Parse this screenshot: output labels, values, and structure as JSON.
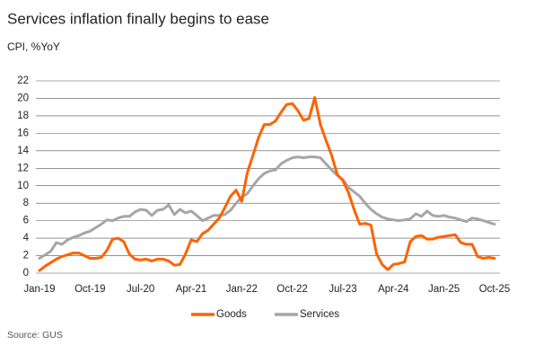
{
  "chart_data": {
    "type": "line",
    "title": "Services inflation finally begins to ease",
    "subtitle": "CPI, %YoY",
    "source": "Source: GUS",
    "categories": [
      "Jan-19",
      null,
      null,
      null,
      null,
      null,
      null,
      null,
      null,
      "Oct-19",
      null,
      null,
      null,
      null,
      null,
      null,
      null,
      null,
      "Jul-20",
      null,
      null,
      null,
      null,
      null,
      null,
      null,
      null,
      "Apr-21",
      null,
      null,
      null,
      null,
      null,
      null,
      null,
      null,
      "Jan-22",
      null,
      null,
      null,
      null,
      null,
      null,
      null,
      null,
      "Oct-22",
      null,
      null,
      null,
      null,
      null,
      null,
      null,
      null,
      "Jul-23",
      null,
      null,
      null,
      null,
      null,
      null,
      null,
      null,
      "Apr-24",
      null,
      null,
      null,
      null,
      null,
      null,
      null,
      null,
      "Jan-25",
      null,
      null,
      null,
      null,
      null,
      null,
      null,
      null,
      "Oct-25"
    ],
    "series": [
      {
        "name": "Goods",
        "color": "#ff6200",
        "values": [
          0.3,
          0.8,
          1.2,
          1.6,
          1.9,
          2.1,
          2.3,
          2.3,
          2.0,
          1.7,
          1.7,
          1.8,
          2.6,
          3.9,
          4.0,
          3.6,
          2.2,
          1.6,
          1.5,
          1.6,
          1.4,
          1.6,
          1.6,
          1.4,
          0.9,
          1.0,
          2.2,
          3.8,
          3.6,
          4.5,
          4.9,
          5.6,
          6.3,
          7.5,
          8.8,
          9.5,
          8.2,
          11.5,
          13.5,
          15.5,
          17.0,
          17.0,
          17.4,
          18.4,
          19.3,
          19.4,
          18.6,
          17.5,
          17.7,
          20.1,
          17.0,
          15.2,
          13.5,
          11.3,
          10.6,
          9.2,
          7.3,
          5.6,
          5.7,
          5.5,
          2.2,
          1.0,
          0.4,
          1.0,
          1.1,
          1.3,
          3.6,
          4.2,
          4.3,
          3.9,
          3.9,
          4.1,
          4.2,
          4.3,
          4.4,
          3.5,
          3.3,
          3.3,
          1.9,
          1.7,
          1.8,
          1.7
        ]
      },
      {
        "name": "Services",
        "color": "#a6a6a6",
        "values": [
          1.7,
          2.1,
          2.5,
          3.5,
          3.3,
          3.8,
          4.1,
          4.3,
          4.6,
          4.8,
          5.2,
          5.6,
          6.1,
          6.0,
          6.3,
          6.5,
          6.5,
          7.0,
          7.3,
          7.2,
          6.6,
          7.2,
          7.3,
          7.8,
          6.7,
          7.3,
          6.9,
          7.1,
          6.6,
          6.0,
          6.3,
          6.6,
          6.6,
          6.7,
          7.2,
          8.0,
          8.7,
          9.1,
          10.0,
          10.8,
          11.4,
          11.7,
          11.8,
          12.5,
          12.9,
          13.2,
          13.3,
          13.2,
          13.3,
          13.3,
          13.2,
          12.5,
          11.8,
          11.2,
          10.7,
          9.8,
          9.3,
          8.8,
          8.0,
          7.3,
          6.8,
          6.4,
          6.2,
          6.1,
          6.0,
          6.1,
          6.2,
          6.8,
          6.5,
          7.1,
          6.6,
          6.5,
          6.6,
          6.4,
          6.3,
          6.1,
          5.9,
          6.3,
          6.2,
          6.0,
          5.8,
          5.6
        ]
      }
    ],
    "ylim": [
      0,
      22
    ],
    "yticks": [
      0,
      2,
      4,
      6,
      8,
      10,
      12,
      14,
      16,
      18,
      20,
      22
    ],
    "grid": true,
    "legend": "bottom"
  }
}
